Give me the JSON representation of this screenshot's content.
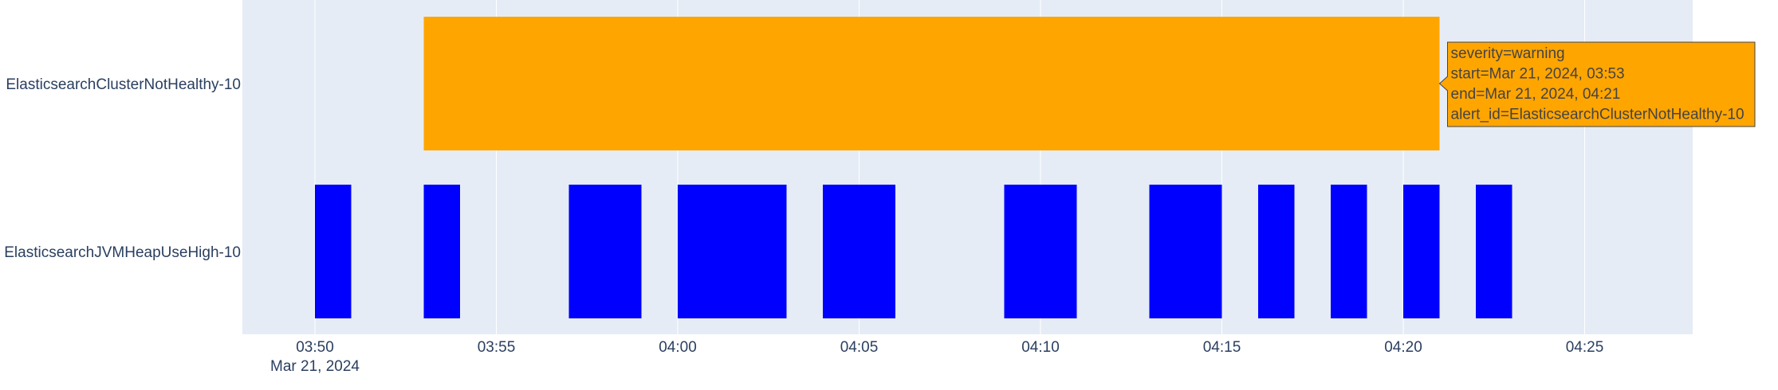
{
  "chart_data": {
    "type": "timeline",
    "x_axis": {
      "range": [
        "2024-03-21 03:48",
        "2024-03-28 04:28"
      ],
      "ticks": [
        "03:50",
        "03:55",
        "04:00",
        "04:05",
        "04:10",
        "04:15",
        "04:20",
        "04:25"
      ],
      "date_label": "Mar 21, 2024"
    },
    "categories": [
      "ElasticsearchClusterNotHealthy-10",
      "ElasticsearchJVMHeapUseHigh-10"
    ],
    "colors": {
      "warning": "#FFA500",
      "jvm": "#0000FF",
      "plot_bg": "#E5ECF6"
    },
    "series": [
      {
        "category": "ElasticsearchClusterNotHealthy-10",
        "severity": "warning",
        "intervals": [
          {
            "start": "03:53",
            "end": "04:21"
          }
        ]
      },
      {
        "category": "ElasticsearchJVMHeapUseHigh-10",
        "intervals": [
          {
            "start": "03:50",
            "end": "03:51"
          },
          {
            "start": "03:53",
            "end": "03:54"
          },
          {
            "start": "03:57",
            "end": "03:59"
          },
          {
            "start": "04:00",
            "end": "04:03"
          },
          {
            "start": "04:04",
            "end": "04:06"
          },
          {
            "start": "04:09",
            "end": "04:11"
          },
          {
            "start": "04:13",
            "end": "04:15"
          },
          {
            "start": "04:16",
            "end": "04:17"
          },
          {
            "start": "04:18",
            "end": "04:19"
          },
          {
            "start": "04:20",
            "end": "04:21"
          },
          {
            "start": "04:22",
            "end": "04:23"
          }
        ]
      }
    ]
  },
  "hover": {
    "lines": [
      "severity=warning",
      "start=Mar 21, 2024, 03:53",
      "end=Mar 21, 2024, 04:21",
      "alert_id=ElasticsearchClusterNotHealthy-10"
    ]
  }
}
